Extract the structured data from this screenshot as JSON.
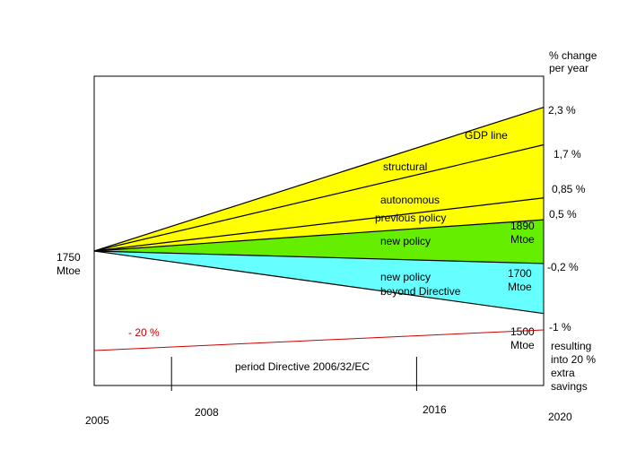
{
  "chart_data": {
    "type": "area",
    "title": "",
    "xlabel": "",
    "ylabel": "",
    "x_ticks": [
      "2005",
      "2008",
      "2016",
      "2020"
    ],
    "start": {
      "year": 2005,
      "value_label": [
        "1750",
        "Mtoe"
      ]
    },
    "end_year": 2020,
    "right_axis_title": [
      "% change",
      "per year"
    ],
    "rates": [
      {
        "label": "2,3 %",
        "value": 2.3
      },
      {
        "label": "1,7 %",
        "value": 1.7
      },
      {
        "label": "0,85 %",
        "value": 0.85
      },
      {
        "label": "0,5 %",
        "value": 0.5
      },
      {
        "label": "-0,2 %",
        "value": -0.2
      },
      {
        "label": "-1 %",
        "value": -1.0
      }
    ],
    "bands": [
      {
        "name": "GDP line",
        "from_rate": 1.7,
        "to_rate": 2.3,
        "color": "#ffff00"
      },
      {
        "name": "structural",
        "from_rate": 0.85,
        "to_rate": 1.7,
        "color": "#ffff00"
      },
      {
        "name": "autonomous",
        "from_rate": 0.5,
        "to_rate": 0.85,
        "color": "#ffff00"
      },
      {
        "name": "new policy",
        "from_rate": -0.2,
        "to_rate": 0.5,
        "color": "#66ee00"
      },
      {
        "name": "new policy beyond Directive",
        "from_rate": -1.0,
        "to_rate": -0.2,
        "color": "#66ffff"
      }
    ],
    "line_labels": [
      {
        "text": "GDP line"
      },
      {
        "text": "structural"
      },
      {
        "text": "autonomous"
      },
      {
        "text": "previous policy"
      },
      {
        "text": "new policy"
      },
      {
        "text": "new policy"
      },
      {
        "text": "beyond Directive"
      }
    ],
    "endpoint_labels": [
      {
        "text": [
          "1890",
          "Mtoe"
        ]
      },
      {
        "text": [
          "1700",
          "Mtoe"
        ]
      },
      {
        "text": [
          "1500",
          "Mtoe"
        ]
      }
    ],
    "target_line": {
      "label": "- 20 %",
      "color": "#cc0000"
    },
    "period": {
      "label": "period Directive 2006/32/EC",
      "from": 2008,
      "to": 2016
    },
    "result_note": [
      "resulting",
      "into 20 %",
      "extra",
      "savings"
    ]
  }
}
